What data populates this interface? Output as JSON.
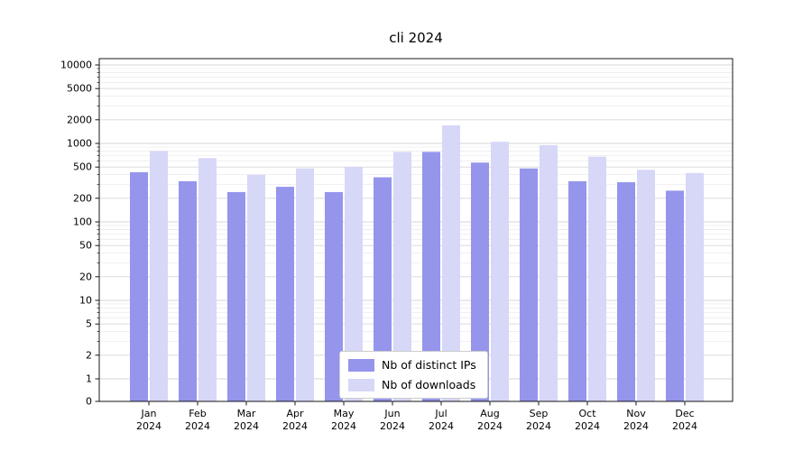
{
  "chart_data": {
    "type": "bar",
    "title": "cli 2024",
    "categories": [
      "Jan",
      "Feb",
      "Mar",
      "Apr",
      "May",
      "Jun",
      "Jul",
      "Aug",
      "Sep",
      "Oct",
      "Nov",
      "Dec"
    ],
    "x_year_label": "2024",
    "series": [
      {
        "name": "Nb of distinct IPs",
        "color": "#9595ec",
        "values": [
          430,
          330,
          240,
          280,
          240,
          370,
          780,
          570,
          480,
          330,
          320,
          250
        ]
      },
      {
        "name": "Nb of downloads",
        "color": "#d7d7f8",
        "values": [
          800,
          650,
          400,
          480,
          500,
          780,
          1700,
          1050,
          950,
          680,
          460,
          420
        ]
      }
    ],
    "yticks": [
      0,
      1,
      2,
      5,
      10,
      20,
      50,
      100,
      200,
      500,
      1000,
      2000,
      5000,
      10000
    ],
    "yscale": "symlog",
    "ylim": [
      0,
      12000
    ],
    "xlabel": "",
    "ylabel": "",
    "grid": true,
    "legend_position": "lower center"
  }
}
